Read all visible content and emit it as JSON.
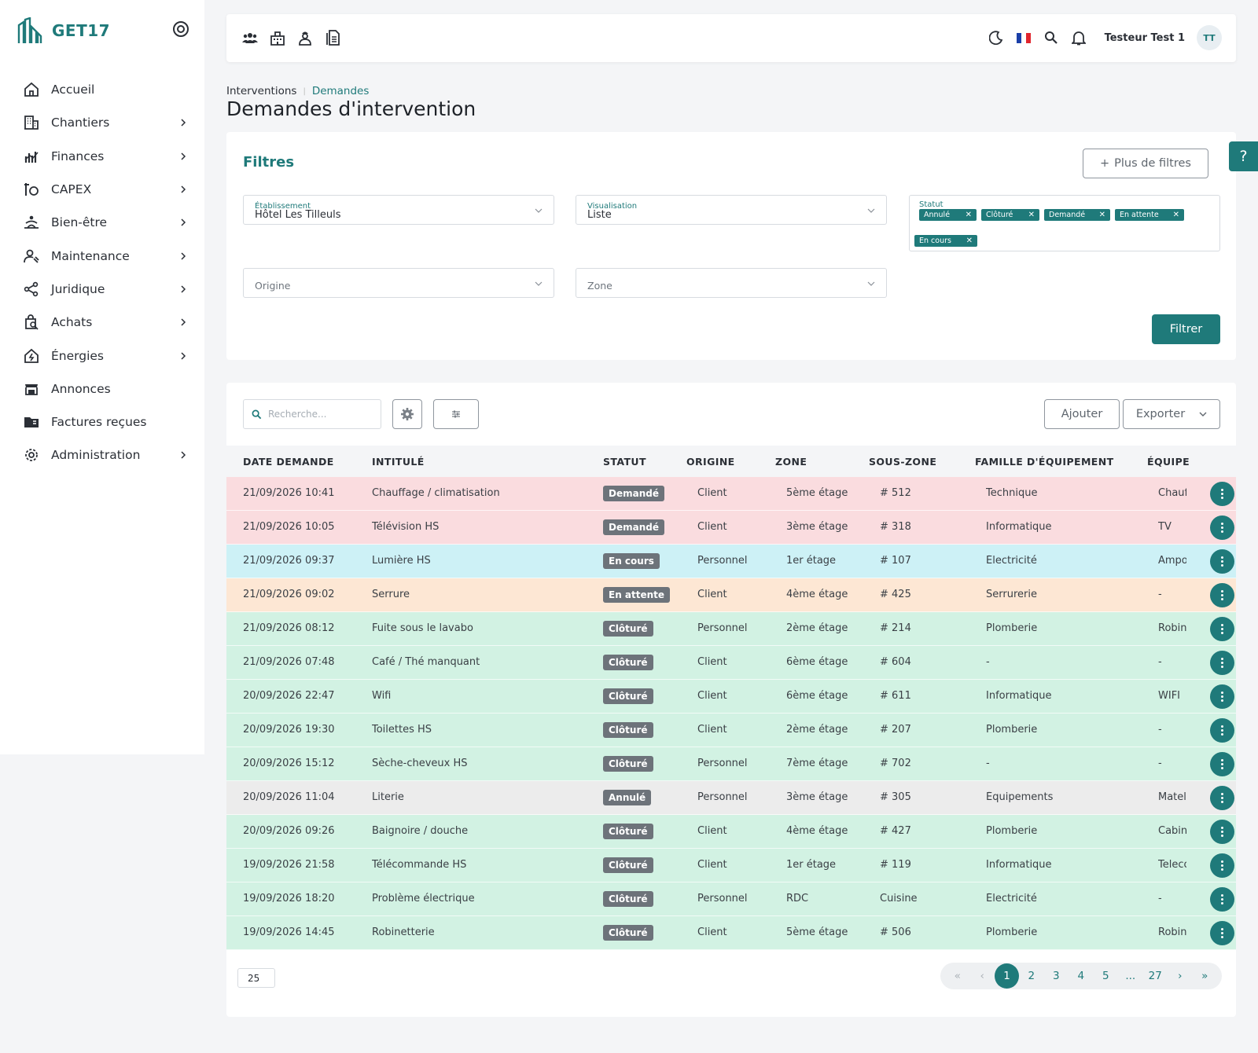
{
  "app": {
    "name": "GET17"
  },
  "sidebar": {
    "items": [
      {
        "label": "Accueil",
        "icon": "home-icon",
        "has_children": false
      },
      {
        "label": "Chantiers",
        "icon": "building-icon",
        "has_children": true
      },
      {
        "label": "Finances",
        "icon": "finance-icon",
        "has_children": true
      },
      {
        "label": "CAPEX",
        "icon": "capex-icon",
        "has_children": true
      },
      {
        "label": "Bien-être",
        "icon": "wellbeing-icon",
        "has_children": true
      },
      {
        "label": "Maintenance",
        "icon": "maintenance-icon",
        "has_children": true
      },
      {
        "label": "Juridique",
        "icon": "share-icon",
        "has_children": true
      },
      {
        "label": "Achats",
        "icon": "shopping-icon",
        "has_children": true
      },
      {
        "label": "Énergies",
        "icon": "energy-icon",
        "has_children": true
      },
      {
        "label": "Annonces",
        "icon": "store-icon",
        "has_children": false
      },
      {
        "label": "Factures reçues",
        "icon": "folder-icon",
        "has_children": false
      },
      {
        "label": "Administration",
        "icon": "gear-icon",
        "has_children": true
      }
    ]
  },
  "topbar": {
    "user_name": "Testeur Test 1",
    "avatar_initials": "TT"
  },
  "breadcrumb": {
    "parent": "Interventions",
    "current": "Demandes"
  },
  "page_title": "Demandes d'intervention",
  "filters": {
    "title": "Filtres",
    "more_filters_label": "Plus de filtres",
    "etablissement": {
      "label": "Établissement",
      "value": "Hôtel Les Tilleuls"
    },
    "visualisation": {
      "label": "Visualisation",
      "value": "Liste"
    },
    "statut": {
      "label": "Statut",
      "chips": [
        "Annulé",
        "Clôturé",
        "Demandé",
        "En attente",
        "En cours"
      ]
    },
    "origine": {
      "placeholder": "Origine"
    },
    "zone": {
      "placeholder": "Zone"
    },
    "filter_button": "Filtrer"
  },
  "help_label": "?",
  "table": {
    "search_placeholder": "Recherche...",
    "add_label": "Ajouter",
    "export_label": "Exporter",
    "columns": [
      "DATE DEMANDE",
      "INTITULÉ",
      "STATUT",
      "ORIGINE",
      "ZONE",
      "SOUS-ZONE",
      "FAMILLE D'ÉQUIPEMENT",
      "ÉQUIPE"
    ],
    "rows": [
      {
        "date": "21/09/2026 10:41",
        "intitule": "Chauffage / climatisation",
        "statut": "Demandé",
        "origine": "Client",
        "zone": "5ème étage",
        "sous_zone": "# 512",
        "famille": "Technique",
        "equipe": "Chauffage"
      },
      {
        "date": "21/09/2026 10:05",
        "intitule": "Télévision HS",
        "statut": "Demandé",
        "origine": "Client",
        "zone": "3ème étage",
        "sous_zone": "# 318",
        "famille": "Informatique",
        "equipe": "TV"
      },
      {
        "date": "21/09/2026 09:37",
        "intitule": "Lumière HS",
        "statut": "En cours",
        "origine": "Personnel",
        "zone": "1er étage",
        "sous_zone": "# 107",
        "famille": "Électricité",
        "equipe": "Ampoule"
      },
      {
        "date": "21/09/2026 09:02",
        "intitule": "Serrure",
        "statut": "En attente",
        "origine": "Client",
        "zone": "4ème étage",
        "sous_zone": "# 425",
        "famille": "Serrurerie",
        "equipe": "-"
      },
      {
        "date": "21/09/2026 08:12",
        "intitule": "Fuite sous le lavabo",
        "statut": "Clôturé",
        "origine": "Personnel",
        "zone": "2ème étage",
        "sous_zone": "# 214",
        "famille": "Plomberie",
        "equipe": "Robinet"
      },
      {
        "date": "21/09/2026 07:48",
        "intitule": "Café / Thé manquant",
        "statut": "Clôturé",
        "origine": "Client",
        "zone": "6ème étage",
        "sous_zone": "# 604",
        "famille": "-",
        "equipe": "-"
      },
      {
        "date": "20/09/2026 22:47",
        "intitule": "Wifi",
        "statut": "Clôturé",
        "origine": "Client",
        "zone": "6ème étage",
        "sous_zone": "# 611",
        "famille": "Informatique",
        "equipe": "WIFI"
      },
      {
        "date": "20/09/2026 19:30",
        "intitule": "Toilettes HS",
        "statut": "Clôturé",
        "origine": "Client",
        "zone": "2ème étage",
        "sous_zone": "# 207",
        "famille": "Plomberie",
        "equipe": "-"
      },
      {
        "date": "20/09/2026 15:12",
        "intitule": "Sèche-cheveux HS",
        "statut": "Clôturé",
        "origine": "Personnel",
        "zone": "7ème étage",
        "sous_zone": "# 702",
        "famille": "-",
        "equipe": "-"
      },
      {
        "date": "20/09/2026 11:04",
        "intitule": "Literie",
        "statut": "Annulé",
        "origine": "Personnel",
        "zone": "3ème étage",
        "sous_zone": "# 305",
        "famille": "Équipements",
        "equipe": "Matelas"
      },
      {
        "date": "20/09/2026 09:26",
        "intitule": "Baignoire / douche",
        "statut": "Clôturé",
        "origine": "Client",
        "zone": "4ème étage",
        "sous_zone": "# 427",
        "famille": "Plomberie",
        "equipe": "Cabine"
      },
      {
        "date": "19/09/2026 21:58",
        "intitule": "Télécommande HS",
        "statut": "Clôturé",
        "origine": "Client",
        "zone": "1er étage",
        "sous_zone": "# 119",
        "famille": "Informatique",
        "equipe": "Telecommande"
      },
      {
        "date": "19/09/2026 18:20",
        "intitule": "Problème électrique",
        "statut": "Clôturé",
        "origine": "Personnel",
        "zone": "RDC",
        "sous_zone": "Cuisine",
        "famille": "Électricité",
        "equipe": "-"
      },
      {
        "date": "19/09/2026 14:45",
        "intitule": "Robinetterie",
        "statut": "Clôturé",
        "origine": "Client",
        "zone": "5ème étage",
        "sous_zone": "# 506",
        "famille": "Plomberie",
        "equipe": "Robinet"
      }
    ],
    "status_colors": {
      "Demandé": "#fadcdf",
      "En cours": "#cdf1f6",
      "En attente": "#fde7d4",
      "Clôturé": "#d2f2e3",
      "Annulé": "#ececec"
    },
    "page_size": "25",
    "pagination": [
      "«",
      "‹",
      "1",
      "2",
      "3",
      "4",
      "5",
      "...",
      "27",
      "›",
      "»"
    ],
    "current_page": "1"
  },
  "colors": {
    "accent": "#1f7a7a"
  }
}
